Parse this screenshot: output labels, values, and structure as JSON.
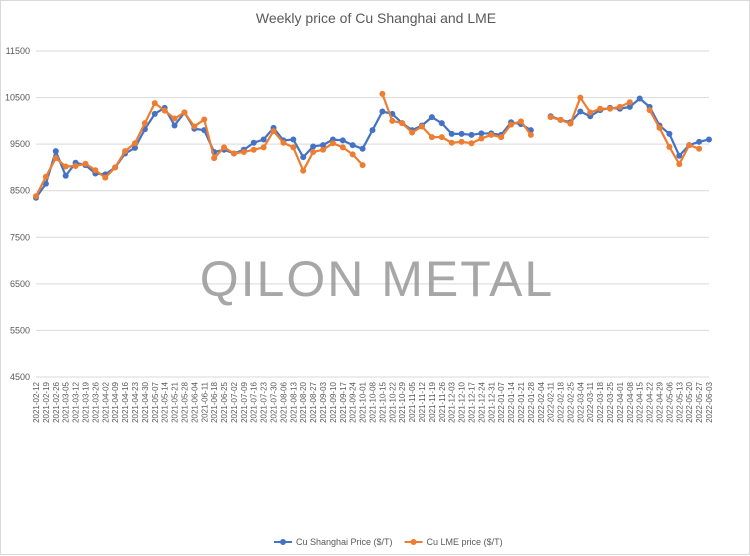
{
  "chart_data": {
    "type": "line",
    "title": "Weekly price of Cu Shanghai and LME",
    "watermark": "QILON METAL",
    "ylim": [
      4500,
      11500
    ],
    "yticks": [
      4500,
      5500,
      6500,
      7500,
      8500,
      9500,
      10500,
      11500
    ],
    "grid": true,
    "legend_position": "bottom",
    "x": [
      "2021-02-12",
      "2021-02-19",
      "2021-02-26",
      "2021-03-05",
      "2021-03-12",
      "2021-03-19",
      "2021-03-26",
      "2021-04-02",
      "2021-04-09",
      "2021-04-16",
      "2021-04-23",
      "2021-04-30",
      "2021-05-07",
      "2021-05-14",
      "2021-05-21",
      "2021-05-28",
      "2021-06-04",
      "2021-06-11",
      "2021-06-18",
      "2021-06-25",
      "2021-07-02",
      "2021-07-09",
      "2021-07-16",
      "2021-07-23",
      "2021-07-30",
      "2021-08-06",
      "2021-08-13",
      "2021-08-20",
      "2021-08-27",
      "2021-09-03",
      "2021-09-10",
      "2021-09-17",
      "2021-09-24",
      "2021-10-01",
      "2021-10-08",
      "2021-10-15",
      "2021-10-22",
      "2021-10-29",
      "2021-11-05",
      "2021-11-12",
      "2021-11-19",
      "2021-11-26",
      "2021-12-03",
      "2021-12-10",
      "2021-12-17",
      "2021-12-24",
      "2021-12-31",
      "2022-01-07",
      "2022-01-14",
      "2022-01-21",
      "2022-01-28",
      "2022-02-04",
      "2022-02-11",
      "2022-02-18",
      "2022-02-25",
      "2022-03-04",
      "2022-03-11",
      "2022-03-18",
      "2022-03-25",
      "2022-04-01",
      "2022-04-08",
      "2022-04-15",
      "2022-04-22",
      "2022-04-29",
      "2022-05-06",
      "2022-05-13",
      "2022-05-20",
      "2022-05-27",
      "2022-06-03"
    ],
    "series": [
      {
        "name": "Cu Shanghai Price ($/T)",
        "color": "#4472c4",
        "values": [
          8350,
          8650,
          9350,
          8820,
          9100,
          9050,
          8870,
          8850,
          9000,
          9300,
          9420,
          9820,
          10150,
          10280,
          9900,
          10180,
          9830,
          9800,
          9330,
          9380,
          9300,
          9380,
          9530,
          9600,
          9850,
          9580,
          9600,
          9220,
          9450,
          9480,
          9600,
          9580,
          9480,
          9400,
          9800,
          10200,
          10150,
          9950,
          9800,
          9900,
          10080,
          9950,
          9720,
          9720,
          9700,
          9730,
          9730,
          9700,
          9970,
          9930,
          9800,
          null,
          10100,
          10020,
          9970,
          10200,
          10100,
          10230,
          10280,
          10260,
          10300,
          10480,
          10300,
          9900,
          9720,
          9250,
          9480,
          9550,
          9600
        ]
      },
      {
        "name": "Cu LME price ($/T)",
        "color": "#ed7d31",
        "values": [
          8380,
          8800,
          9200,
          9020,
          9030,
          9080,
          8940,
          8780,
          9000,
          9350,
          9520,
          9950,
          10380,
          10220,
          10050,
          10180,
          9880,
          10030,
          9200,
          9430,
          9300,
          9330,
          9380,
          9430,
          9780,
          9530,
          9430,
          8930,
          9330,
          9380,
          9520,
          9430,
          9280,
          9050,
          null,
          10580,
          10000,
          9950,
          9750,
          9880,
          9650,
          9650,
          9530,
          9550,
          9520,
          9620,
          9700,
          9650,
          9920,
          9990,
          9700,
          null,
          10080,
          10020,
          9940,
          10500,
          10180,
          10260,
          10260,
          10300,
          10400,
          null,
          10230,
          9850,
          9440,
          9070,
          9480,
          9400,
          null
        ]
      }
    ]
  }
}
